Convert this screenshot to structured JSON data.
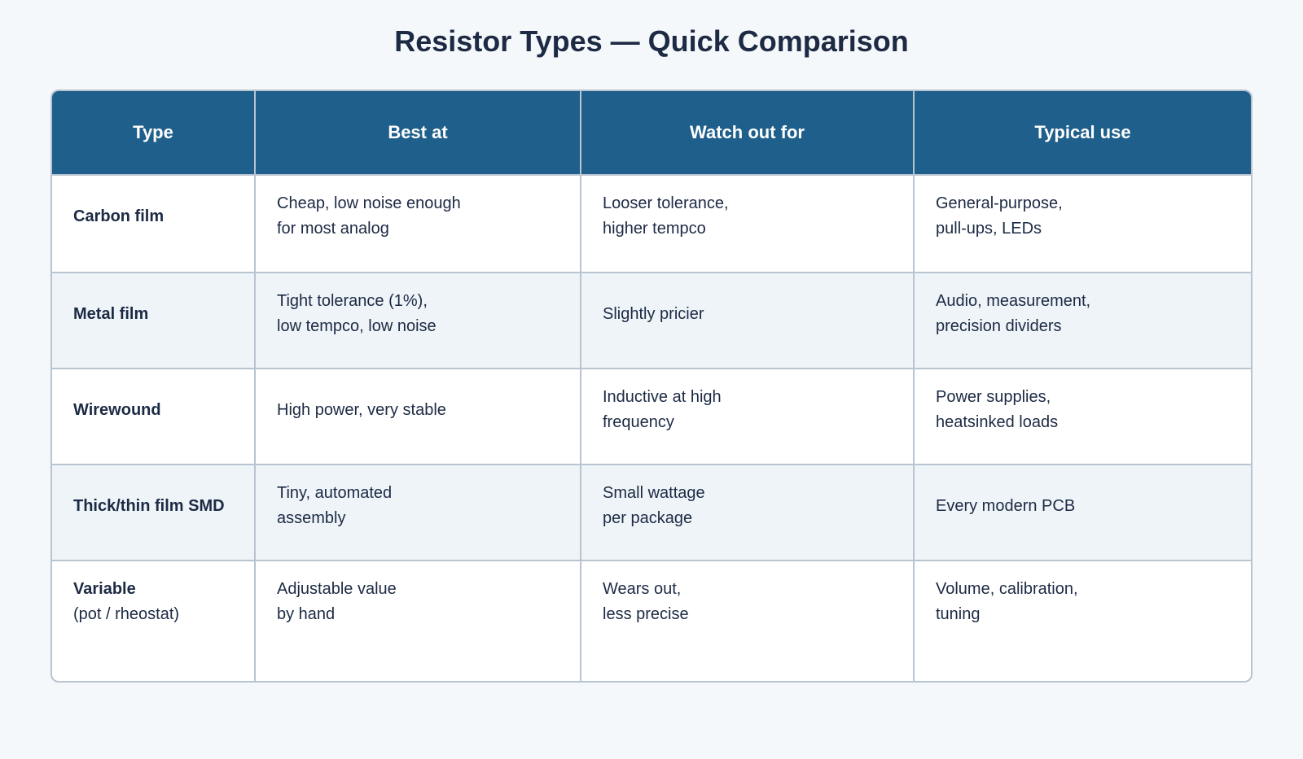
{
  "title": "Resistor Types — Quick Comparison",
  "table": {
    "headers": [
      "Type",
      "Best at",
      "Watch out for",
      "Typical use"
    ],
    "rows": [
      {
        "type": "Carbon film",
        "cells": [
          [
            "Cheap, low noise enough",
            "for most analog"
          ],
          [
            "Looser tolerance,",
            "higher tempco"
          ],
          [
            "General-purpose,",
            "pull-ups, LEDs"
          ]
        ]
      },
      {
        "type": "Metal film",
        "cells": [
          [
            "Tight tolerance (1%),",
            "low tempco, low noise"
          ],
          [
            "Slightly pricier"
          ],
          [
            "Audio, measurement,",
            "precision dividers"
          ]
        ]
      },
      {
        "type": "Wirewound",
        "cells": [
          [
            "High power, very stable"
          ],
          [
            "Inductive at high",
            "frequency"
          ],
          [
            "Power supplies,",
            "heatsinked loads"
          ]
        ]
      },
      {
        "type": "Thick/thin film SMD",
        "cells": [
          [
            "Tiny, automated",
            "assembly"
          ],
          [
            "Small wattage",
            "per package"
          ],
          [
            "Every modern PCB"
          ]
        ]
      },
      {
        "type": "Variable",
        "note": "(pot / rheostat)",
        "cells": [
          [
            "Adjustable value",
            "by hand"
          ],
          [
            "Wears out,",
            "less precise"
          ],
          [
            "Volume, calibration,",
            "tuning"
          ]
        ]
      }
    ]
  }
}
